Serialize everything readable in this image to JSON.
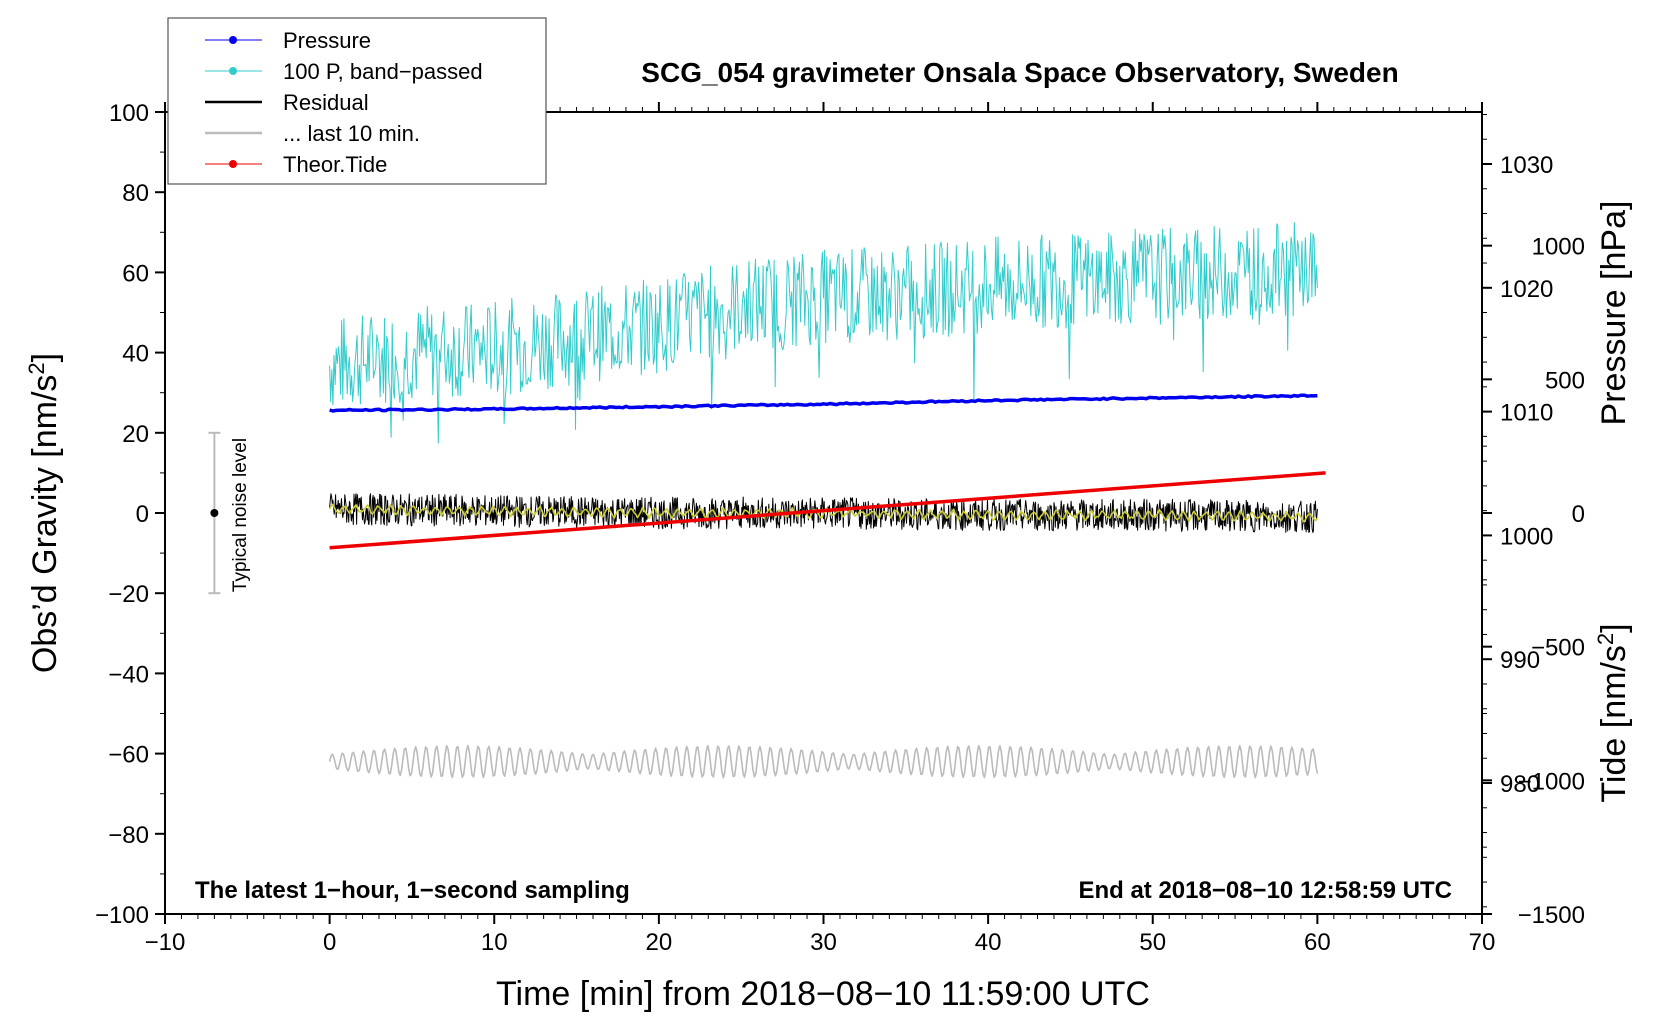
{
  "chart_data": {
    "type": "line",
    "title": "SCG_054 gravimeter Onsala Space Observatory, Sweden",
    "xlabel": "Time [min] from 2018−08−10 11:59:00 UTC",
    "ylabel": "Obs’d Gravity [nm/s²]",
    "ylabel_main": "Obs’d Gravity [nm/s",
    "ylabel_sup": "2",
    "ylabel_end": "]",
    "y2label": "Pressure [hPa]",
    "y3label": "Tide [nm/s²]",
    "y3label_main": "Tide [nm/s",
    "y3label_sup": "2",
    "y3label_end": "]",
    "xlim": [
      -10,
      70
    ],
    "ylim": [
      -100,
      100
    ],
    "pressure_lim": [
      969.42,
      1034.2
    ],
    "tide_lim": [
      -1500,
      1500
    ],
    "x_ticks": [
      -10,
      0,
      10,
      20,
      30,
      40,
      50,
      60,
      70
    ],
    "x_tick_labels": [
      "−10",
      "0",
      "10",
      "20",
      "30",
      "40",
      "50",
      "60",
      "70"
    ],
    "y_ticks": [
      -100,
      -80,
      -60,
      -40,
      -20,
      0,
      20,
      40,
      60,
      80,
      100
    ],
    "y_tick_labels": [
      "−100",
      "−80",
      "−60",
      "−40",
      "−20",
      "0",
      "20",
      "40",
      "60",
      "80",
      "100"
    ],
    "pressure_ticks": [
      980,
      990,
      1000,
      1010,
      1020,
      1030
    ],
    "pressure_tick_labels": [
      "980",
      "990",
      "1000",
      "1010",
      "1020",
      "1030"
    ],
    "tide_ticks": [
      -1500,
      -1000,
      -500,
      0,
      500,
      1000
    ],
    "tide_tick_labels": [
      "−1500",
      "−1000",
      "−500",
      "0",
      "500",
      "1000"
    ],
    "legend": [
      {
        "label": "Pressure",
        "color": "#0000ee",
        "marker": true
      },
      {
        "label": "100 P, band−passed",
        "color": "#33cccc",
        "marker": true
      },
      {
        "label": "Residual",
        "color": "#000000",
        "marker": false
      },
      {
        "label": "... last 10 min.",
        "color": "#bbbbbb",
        "marker": false
      },
      {
        "label": "Theor.Tide",
        "color": "#ee0000",
        "marker": true
      }
    ],
    "legend_position": "top-left",
    "annotation_left": "The latest 1−hour, 1−second sampling",
    "annotation_right": "End at 2018−08−10 12:58:59 UTC",
    "noise_label": "Typical noise level",
    "noise_level": {
      "x": -7,
      "center": 0,
      "low": -20,
      "high": 20
    },
    "series": [
      {
        "name": "Pressure",
        "axis": "pressure",
        "color": "#0000ee",
        "x": [
          0,
          10,
          20,
          30,
          40,
          50,
          60
        ],
        "values": [
          1010.1,
          1010.2,
          1010.4,
          1010.6,
          1010.9,
          1011.1,
          1011.3
        ]
      },
      {
        "name": "100 P, band−passed",
        "axis": "gravity",
        "color": "#33cccc",
        "x": [
          0,
          5,
          10,
          15,
          20,
          25,
          30,
          35,
          40,
          45,
          50,
          55,
          60
        ],
        "values": [
          37,
          40,
          41,
          44,
          47,
          52,
          54,
          55,
          57,
          58,
          59,
          60,
          61
        ],
        "spread": 12
      },
      {
        "name": "Residual",
        "axis": "gravity",
        "color": "#000000",
        "x": [
          0,
          10,
          20,
          30,
          40,
          50,
          60
        ],
        "values": [
          1,
          0.5,
          0,
          0,
          -0.5,
          -0.5,
          -1
        ],
        "spread": 4
      },
      {
        "name": "... last 10 min.",
        "axis": "gravity",
        "color": "#bbbbbb",
        "x": [
          0,
          60
        ],
        "values": [
          -62,
          -62
        ],
        "spread": 4
      },
      {
        "name": "Theor.Tide",
        "axis": "tide",
        "color": "#ee0000",
        "x": [
          0,
          60.5
        ],
        "values": [
          -130,
          150
        ]
      },
      {
        "name": "Residual (smoothed)",
        "axis": "gravity",
        "color": "#cccc33",
        "x": [
          0,
          10,
          20,
          30,
          40,
          50,
          60
        ],
        "values": [
          1,
          0.5,
          0,
          0,
          -0.5,
          -0.5,
          -1
        ],
        "spread": 1
      }
    ]
  }
}
